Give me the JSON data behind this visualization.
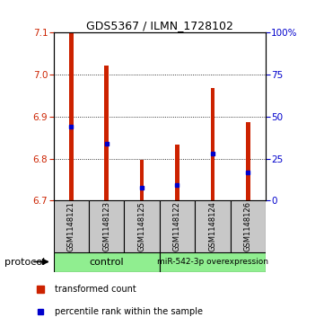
{
  "title": "GDS5367 / ILMN_1728102",
  "samples": [
    "GSM1148121",
    "GSM1148123",
    "GSM1148125",
    "GSM1148122",
    "GSM1148124",
    "GSM1148126"
  ],
  "red_top": [
    7.098,
    7.022,
    6.796,
    6.834,
    6.968,
    6.886
  ],
  "blue_y": [
    6.875,
    6.835,
    6.73,
    6.737,
    6.812,
    6.766
  ],
  "base": 6.7,
  "ylim": [
    6.7,
    7.1
  ],
  "yticks_left": [
    6.7,
    6.8,
    6.9,
    7.0,
    7.1
  ],
  "yticks_right": [
    0,
    25,
    50,
    75,
    100
  ],
  "ytick_labels_right": [
    "0",
    "25",
    "50",
    "75",
    "100%"
  ],
  "red_color": "#CC2200",
  "blue_color": "#0000CC",
  "bar_width": 0.12,
  "background_color": "#ffffff",
  "legend_red": "transformed count",
  "legend_blue": "percentile rank within the sample",
  "protocol_label": "protocol",
  "group_bg": "#C8C8C8",
  "group_green": "#90EE90",
  "ctrl_label": "control",
  "mir_label": "miR-542-3p overexpression"
}
